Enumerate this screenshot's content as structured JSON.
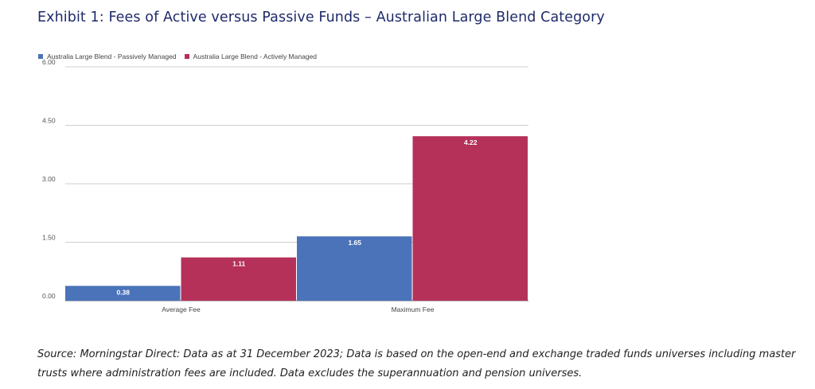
{
  "title": "Exhibit 1: Fees of Active versus Passive Funds – Australian Large Blend Category",
  "source": "Source: Morningstar Direct: Data as at 31 December 2023; Data is based on the open-end and exchange traded funds universes including master trusts where administration fees are included. Data excludes the superannuation and pension universes.",
  "chart_data": {
    "type": "bar",
    "categories": [
      "Average Fee",
      "Maximum Fee"
    ],
    "series": [
      {
        "name": "Australia Large Blend - Passively Managed",
        "values": [
          0.38,
          1.65
        ],
        "labels": [
          "0.38",
          "1.65"
        ],
        "color": "#4a73b9"
      },
      {
        "name": "Australia Large Blend - Actively Managed",
        "values": [
          1.11,
          4.22
        ],
        "labels": [
          "1.11",
          "4.22"
        ],
        "color": "#b5315a"
      }
    ],
    "yticks": [
      0.0,
      1.5,
      3.0,
      4.5,
      6.0
    ],
    "ytick_labels": [
      "0.00",
      "1.50",
      "3.00",
      "4.50",
      "6.00"
    ],
    "ylim": [
      0,
      6
    ],
    "grid": true,
    "legend_position": "top-left",
    "xlabel": "",
    "ylabel": ""
  }
}
